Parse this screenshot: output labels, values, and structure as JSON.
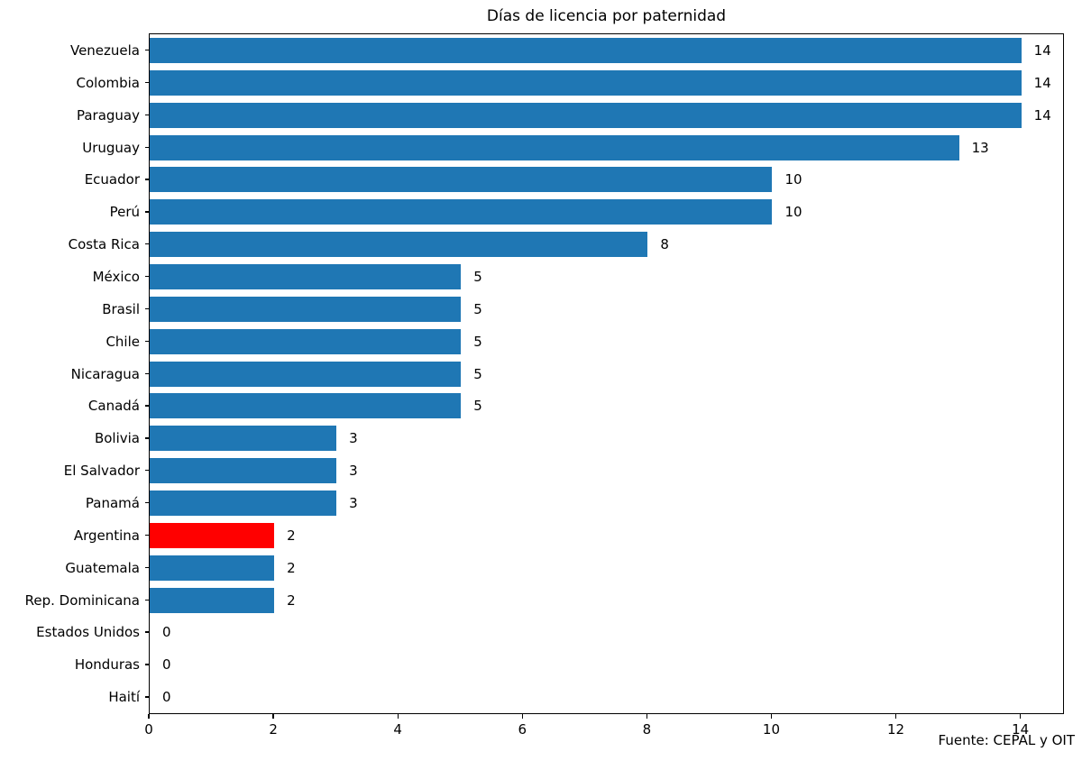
{
  "chart_data": {
    "type": "bar",
    "orientation": "horizontal",
    "title": "Días de licencia por paternidad",
    "categories": [
      "Venezuela",
      "Colombia",
      "Paraguay",
      "Uruguay",
      "Ecuador",
      "Perú",
      "Costa Rica",
      "México",
      "Brasil",
      "Chile",
      "Nicaragua",
      "Canadá",
      "Bolivia",
      "El Salvador",
      "Panamá",
      "Argentina",
      "Guatemala",
      "Rep. Dominicana",
      "Estados Unidos",
      "Honduras",
      "Haití"
    ],
    "values": [
      14,
      14,
      14,
      13,
      10,
      10,
      8,
      5,
      5,
      5,
      5,
      5,
      3,
      3,
      3,
      2,
      2,
      2,
      0,
      0,
      0
    ],
    "value_labels": [
      "14",
      "14",
      "14",
      "13",
      "10",
      "10",
      "8",
      "5",
      "5",
      "5",
      "5",
      "5",
      "3",
      "3",
      "3",
      "2",
      "2",
      "2",
      "0",
      "0",
      "0"
    ],
    "highlight_category": "Argentina",
    "colors": {
      "bar_default": "#1f77b4",
      "bar_highlight": "#ff0000",
      "text": "#000000",
      "background": "#ffffff"
    },
    "xlabel": "",
    "ylabel": "",
    "xticks": [
      0,
      2,
      4,
      6,
      8,
      10,
      12,
      14
    ],
    "xlim": [
      0,
      14.7
    ],
    "grid": false,
    "legend": null,
    "source_note": "Fuente: CEPAL y OIT"
  }
}
